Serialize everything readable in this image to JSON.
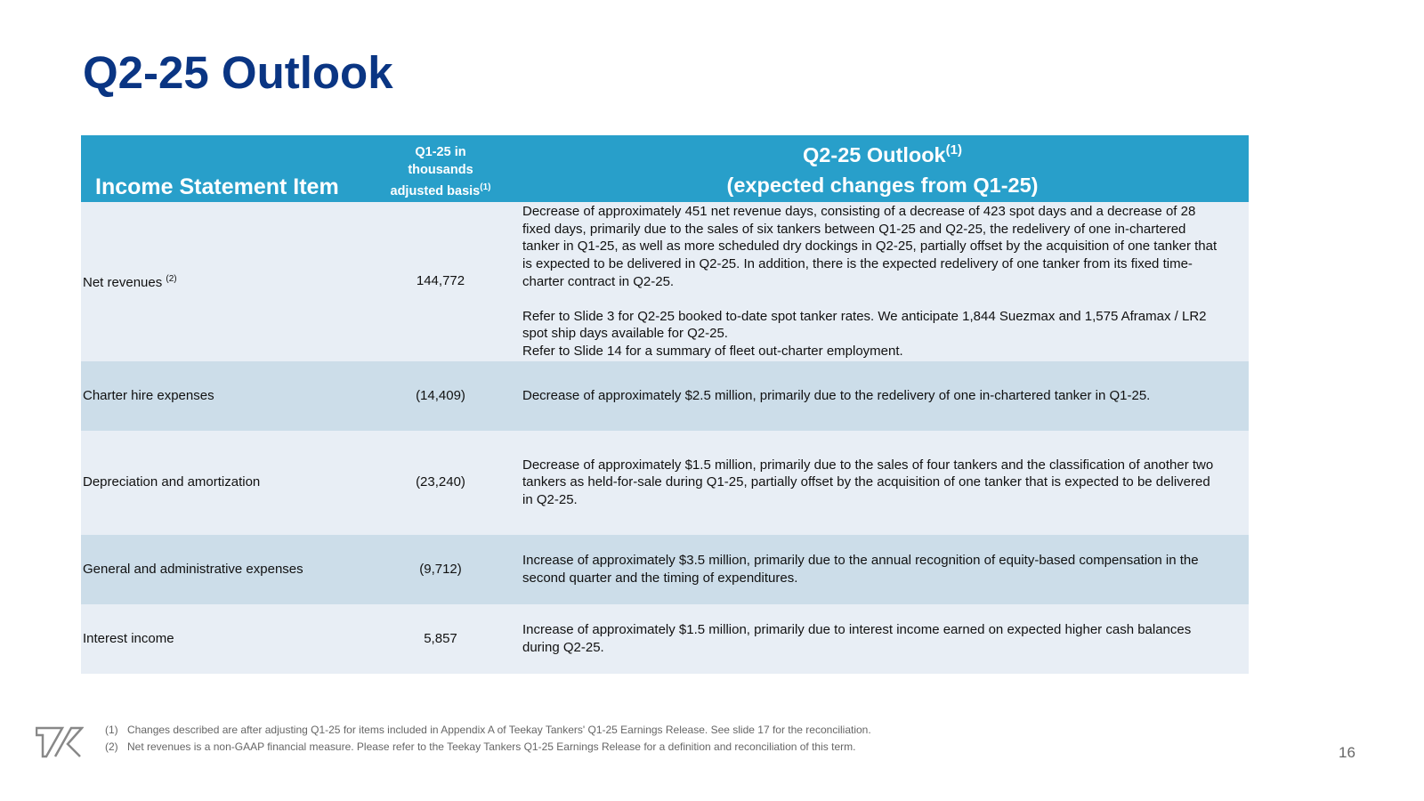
{
  "title": "Q2-25 Outlook",
  "header": {
    "col1": "Income Statement Item",
    "col2_lines": [
      "Q1-25 in",
      "thousands",
      "adjusted basis"
    ],
    "col2_sup": "(1)",
    "col3_line1": "Q2-25 Outlook",
    "col3_sup": "(1)",
    "col3_line2": "(expected changes from Q1-25)"
  },
  "rows": [
    {
      "item": "Net revenues",
      "item_sup": "(2)",
      "value": "144,772",
      "desc": [
        "Decrease of approximately 451 net revenue days, consisting of a decrease of 423 spot days and a decrease of 28 fixed days, primarily due to the sales of six tankers between Q1-25 and Q2-25, the redelivery of one in-chartered tanker in Q1-25, as well as more scheduled dry dockings in Q2-25, partially offset by the acquisition of one tanker that is expected to be delivered in Q2-25. In addition, there is the expected redelivery of one tanker from its fixed time-charter contract in Q2-25.",
        "Refer to Slide 3 for Q2-25 booked to-date spot tanker rates. We anticipate 1,844 Suezmax and 1,575 Aframax / LR2 spot ship days available for Q2-25.",
        "Refer to Slide 14 for a summary of fleet out-charter employment."
      ]
    },
    {
      "item": "Charter hire expenses",
      "value": "(14,409)",
      "desc": "Decrease of approximately $2.5 million, primarily due to the redelivery of one in-chartered tanker in Q1-25."
    },
    {
      "item": "Depreciation and amortization",
      "value": "(23,240)",
      "desc": "Decrease of approximately $1.5 million, primarily due to the sales of four tankers and the classification of another two tankers as held-for-sale during Q1-25, partially offset by the acquisition of one tanker that is expected to be delivered in Q2-25."
    },
    {
      "item": "General and administrative expenses",
      "value": "(9,712)",
      "desc": "Increase of approximately $3.5 million, primarily due to the annual recognition of equity-based compensation in the second quarter and the timing of expenditures."
    },
    {
      "item": "Interest income",
      "value": "5,857",
      "desc": "Increase of approximately $1.5 million, primarily due to interest income earned on expected higher cash balances during Q2-25."
    }
  ],
  "footnotes": [
    {
      "num": "(1)",
      "text": "Changes described are after adjusting Q1-25 for items included in Appendix A of Teekay Tankers' Q1-25 Earnings Release. See slide 17 for the reconciliation."
    },
    {
      "num": "(2)",
      "text": "Net revenues is a non-GAAP financial measure. Please refer to the Teekay Tankers Q1-25 Earnings Release for a definition and reconciliation of this term."
    }
  ],
  "logo": "TK",
  "page_number": "16",
  "colors": {
    "title": "#0a3583",
    "header": "#289fca",
    "row_light": "#e8eef5",
    "row_dark": "#ccdde9"
  }
}
